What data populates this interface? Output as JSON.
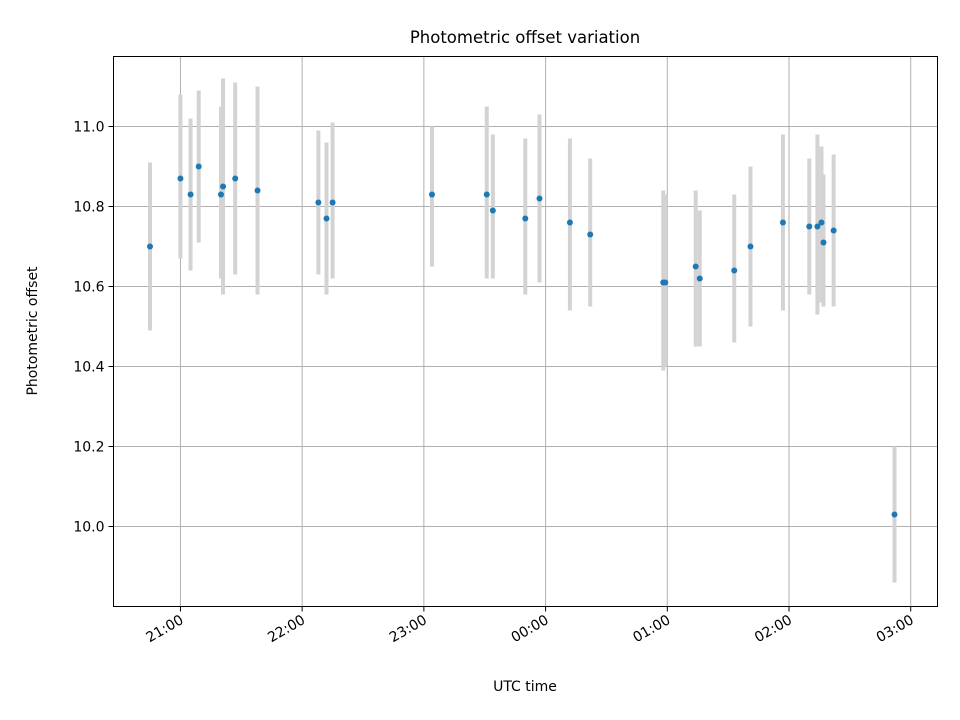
{
  "colors": {
    "marker": "#1f77b4",
    "errorbar": "#d3d3d3",
    "grid": "#b0b0b0"
  },
  "chart_data": {
    "type": "scatter",
    "title": "Photometric offset variation",
    "xlabel": "UTC time",
    "ylabel": "Photometric offset",
    "grid": true,
    "legend": "none",
    "x_unit": "hours since 20:00 UTC (axis runs past midnight)",
    "xlim": [
      0.45,
      7.22
    ],
    "ylim": [
      9.8,
      11.175
    ],
    "x_ticks": [
      {
        "value": 1,
        "label": "21:00"
      },
      {
        "value": 2,
        "label": "22:00"
      },
      {
        "value": 3,
        "label": "23:00"
      },
      {
        "value": 4,
        "label": "00:00"
      },
      {
        "value": 5,
        "label": "01:00"
      },
      {
        "value": 6,
        "label": "02:00"
      },
      {
        "value": 7,
        "label": "03:00"
      }
    ],
    "y_ticks": [
      {
        "value": 10.0,
        "label": "10.0"
      },
      {
        "value": 10.2,
        "label": "10.2"
      },
      {
        "value": 10.4,
        "label": "10.4"
      },
      {
        "value": 10.6,
        "label": "10.6"
      },
      {
        "value": 10.8,
        "label": "10.8"
      },
      {
        "value": 11.0,
        "label": "11.0"
      }
    ],
    "points": [
      {
        "time": "20:45",
        "y": 10.7,
        "ymin": 10.49,
        "ymax": 10.91
      },
      {
        "time": "21:00",
        "y": 10.87,
        "ymin": 10.67,
        "ymax": 11.08
      },
      {
        "time": "21:05",
        "y": 10.83,
        "ymin": 10.64,
        "ymax": 11.02
      },
      {
        "time": "21:09",
        "y": 10.9,
        "ymin": 10.71,
        "ymax": 11.09
      },
      {
        "time": "21:20",
        "y": 10.83,
        "ymin": 10.62,
        "ymax": 11.05
      },
      {
        "time": "21:21",
        "y": 10.85,
        "ymin": 10.58,
        "ymax": 11.12
      },
      {
        "time": "21:27",
        "y": 10.87,
        "ymin": 10.63,
        "ymax": 11.11
      },
      {
        "time": "21:38",
        "y": 10.84,
        "ymin": 10.58,
        "ymax": 11.1
      },
      {
        "time": "22:08",
        "y": 10.81,
        "ymin": 10.63,
        "ymax": 10.99
      },
      {
        "time": "22:12",
        "y": 10.77,
        "ymin": 10.58,
        "ymax": 10.96
      },
      {
        "time": "22:15",
        "y": 10.81,
        "ymin": 10.62,
        "ymax": 11.01
      },
      {
        "time": "23:04",
        "y": 10.83,
        "ymin": 10.65,
        "ymax": 11.0
      },
      {
        "time": "23:31",
        "y": 10.83,
        "ymin": 10.62,
        "ymax": 11.05
      },
      {
        "time": "23:34",
        "y": 10.79,
        "ymin": 10.62,
        "ymax": 10.98
      },
      {
        "time": "23:50",
        "y": 10.77,
        "ymin": 10.58,
        "ymax": 10.97
      },
      {
        "time": "23:57",
        "y": 10.82,
        "ymin": 10.61,
        "ymax": 11.03
      },
      {
        "time": "00:12",
        "y": 10.76,
        "ymin": 10.54,
        "ymax": 10.97
      },
      {
        "time": "00:22",
        "y": 10.73,
        "ymin": 10.55,
        "ymax": 10.92
      },
      {
        "time": "00:58",
        "y": 10.61,
        "ymin": 10.39,
        "ymax": 10.84
      },
      {
        "time": "00:59",
        "y": 10.61,
        "ymin": 10.4,
        "ymax": 10.83
      },
      {
        "time": "01:14",
        "y": 10.65,
        "ymin": 10.45,
        "ymax": 10.84
      },
      {
        "time": "01:16",
        "y": 10.62,
        "ymin": 10.45,
        "ymax": 10.79
      },
      {
        "time": "01:33",
        "y": 10.64,
        "ymin": 10.46,
        "ymax": 10.83
      },
      {
        "time": "01:41",
        "y": 10.7,
        "ymin": 10.5,
        "ymax": 10.9
      },
      {
        "time": "01:57",
        "y": 10.76,
        "ymin": 10.54,
        "ymax": 10.98
      },
      {
        "time": "02:10",
        "y": 10.75,
        "ymin": 10.58,
        "ymax": 10.92
      },
      {
        "time": "02:14",
        "y": 10.75,
        "ymin": 10.53,
        "ymax": 10.98
      },
      {
        "time": "02:16",
        "y": 10.76,
        "ymin": 10.56,
        "ymax": 10.95
      },
      {
        "time": "02:17",
        "y": 10.71,
        "ymin": 10.55,
        "ymax": 10.88
      },
      {
        "time": "02:22",
        "y": 10.74,
        "ymin": 10.55,
        "ymax": 10.93
      },
      {
        "time": "02:52",
        "y": 10.03,
        "ymin": 9.86,
        "ymax": 10.2
      }
    ]
  }
}
